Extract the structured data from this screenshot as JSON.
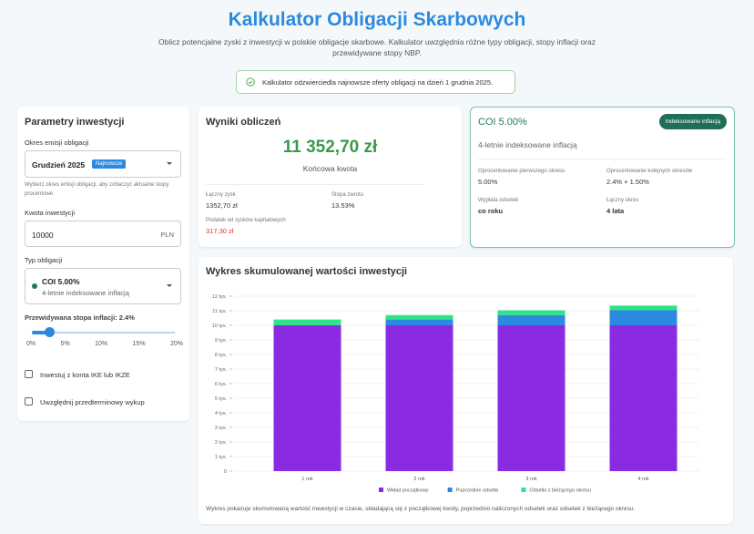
{
  "header": {
    "title": "Kalkulator Obligacji Skarbowych",
    "subtitle": "Oblicz potencjalne zyski z inwestycji w polskie obligacje skarbowe. Kalkulator uwzględnia różne typy obligacji, stopy inflacji oraz przewidywane stopy NBP.",
    "notice": "Kalkulator odzwierciedla najnowsze oferty obligacji na dzień 1 grudnia 2025."
  },
  "params": {
    "title": "Parametry inwestycji",
    "period_label": "Okres emisji obligacji",
    "period_value": "Grudzień 2025",
    "period_badge": "Najnowsze",
    "period_hint": "Wybierz okres emisji obligacji, aby zobaczyć aktualne stopy procentowe",
    "amount_label": "Kwota inwestycji",
    "amount_value": "10000",
    "amount_unit": "PLN",
    "type_label": "Typ obligacji",
    "type_value": "COI 5.00%",
    "type_desc": "4-letnie indeksowane inflacją",
    "inflation_label": "Przewidywana stopa inflacji: 2.4%",
    "inflation_value": 2.4,
    "inflation_max": 20,
    "slider_ticks": [
      "0%",
      "5%",
      "10%",
      "15%",
      "20%"
    ],
    "ike_label": "Inwestuj z konta IKE lub IKZE",
    "early_label": "Uwzględnij przedterminowy wykup"
  },
  "results": {
    "title": "Wyniki obliczeń",
    "final_amount": "11 352,70 zł",
    "final_label": "Końcowa kwota",
    "profit_label": "Łączny zysk",
    "profit_value": "1352,70 zł",
    "return_label": "Stopa zwrotu",
    "return_value": "13.53%",
    "tax_label": "Podatek od zysków kapitałowych",
    "tax_value": "317,30 zł"
  },
  "bond": {
    "name": "COI 5.00%",
    "badge": "Indeksowane inflacją",
    "desc": "4-letnie indeksowane inflacją",
    "first_label": "Oprocentowanie pierwszego okresu",
    "first_value": "5.00%",
    "next_label": "Oprocentowanie kolejnych okresów",
    "next_value": "2.4% + 1.50%",
    "payout_label": "Wypłata odsetek",
    "payout_value": "co roku",
    "total_label": "Łączny okres",
    "total_value": "4 lata"
  },
  "chart_card": {
    "title": "Wykres skumulowanej wartości inwestycji",
    "caption": "Wykres pokazuje skumulowaną wartość inwestycji w czasie, składającą się z początkowej kwoty, poprzednio naliczonych odsetek oraz odsetek z bieżącego okresu."
  },
  "chart_data": {
    "type": "bar",
    "stacked": true,
    "categories": [
      "1 rok",
      "2 rok",
      "3 rok",
      "4 rok"
    ],
    "ylim": [
      0,
      12000
    ],
    "yticks": [
      "0",
      "1 tys.",
      "2 tys.",
      "3 tys.",
      "4 tys.",
      "5 tys.",
      "6 tys.",
      "7 tys.",
      "8 tys.",
      "9 tys.",
      "10 tys.",
      "11 tys.",
      "12 tys."
    ],
    "legend": "bottom",
    "grid": true,
    "series": [
      {
        "name": "Wkład początkowy",
        "color": "#8a2be2",
        "values": [
          10000,
          10000,
          10000,
          10000
        ]
      },
      {
        "name": "Poprzednie odsetki",
        "color": "#2b8ae0",
        "values": [
          0,
          400,
          700,
          1030
        ]
      },
      {
        "name": "Odsetki z bieżącego okresu",
        "color": "#2ee38a",
        "values": [
          400,
          300,
          330,
          323
        ]
      }
    ]
  }
}
